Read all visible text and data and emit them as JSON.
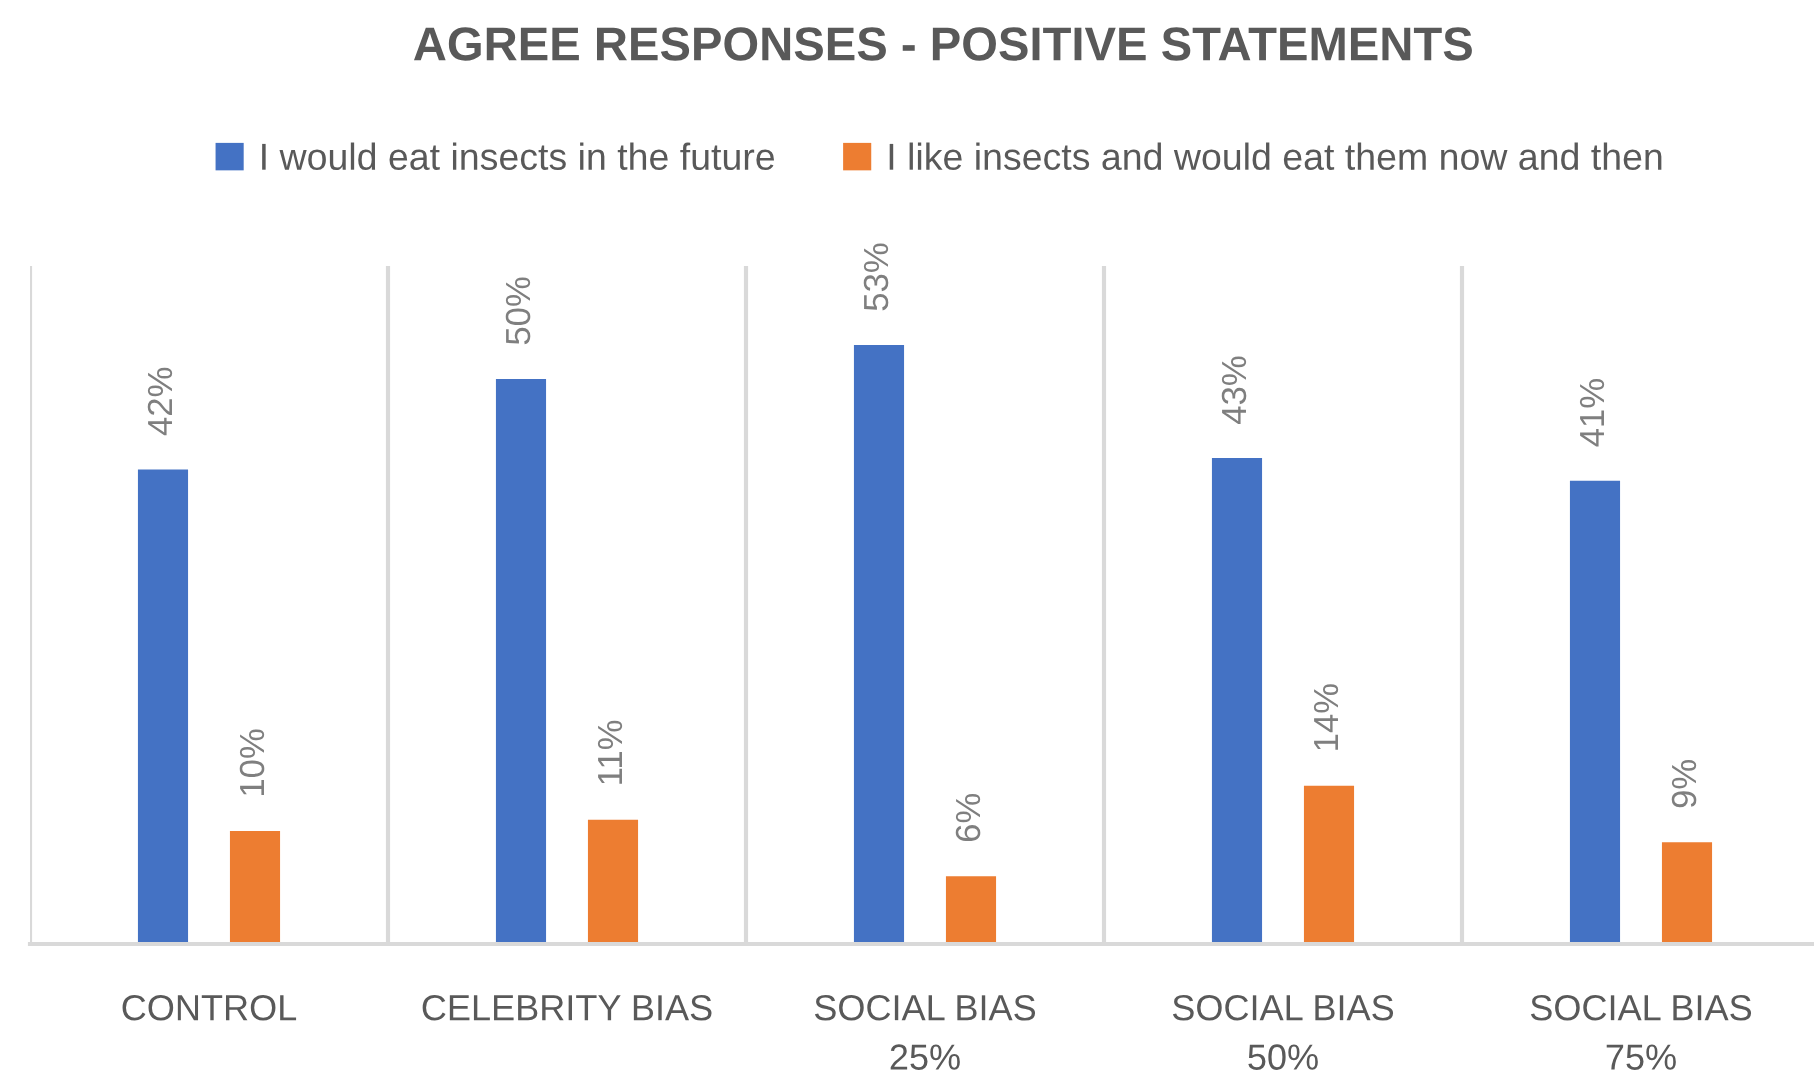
{
  "chart_data": {
    "type": "bar",
    "title": "AGREE RESPONSES - POSITIVE STATEMENTS",
    "categories": [
      "CONTROL",
      "CELEBRITY BIAS",
      "SOCIAL BIAS 25%",
      "SOCIAL BIAS 50%",
      "SOCIAL BIAS 75%"
    ],
    "series": [
      {
        "name": "I would eat insects in the future",
        "color": "#4472c4",
        "values": [
          42,
          50,
          53,
          43,
          41
        ],
        "value_labels": [
          "42%",
          "50%",
          "53%",
          "43%",
          "41%"
        ]
      },
      {
        "name": "I like insects and would eat them now and then",
        "color": "#ed7d31",
        "values": [
          10,
          11,
          6,
          14,
          9
        ],
        "value_labels": [
          "10%",
          "11%",
          "6%",
          "14%",
          "9%"
        ]
      }
    ],
    "ylim": [
      0,
      60
    ],
    "grid": "x",
    "legend": "top",
    "tick_labels": "x"
  }
}
